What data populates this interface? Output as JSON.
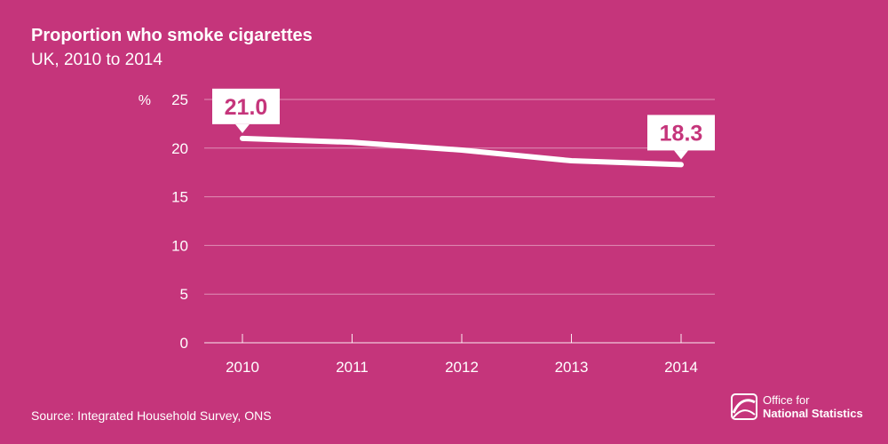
{
  "header": {
    "title": "Proportion who smoke cigarettes",
    "subtitle": "UK, 2010 to 2014"
  },
  "footer": {
    "source": "Source: Integrated Household Survey, ONS",
    "logo_line1": "Office for",
    "logo_line2": "National Statistics"
  },
  "colors": {
    "background": "#c5357b",
    "line": "#ffffff",
    "callout_text": "#c5357b"
  },
  "chart_data": {
    "type": "line",
    "title": "Proportion who smoke cigarettes",
    "subtitle": "UK, 2010 to 2014",
    "ylabel": "%",
    "xlabel": "",
    "categories": [
      "2010",
      "2011",
      "2012",
      "2013",
      "2014"
    ],
    "series": [
      {
        "values": [
          21.0,
          20.6,
          19.8,
          18.7,
          18.3
        ]
      }
    ],
    "annotations": [
      {
        "x": "2010",
        "text": "21.0"
      },
      {
        "x": "2014",
        "text": "18.3"
      }
    ],
    "ylim": [
      0,
      25
    ],
    "yticks": [
      0,
      5,
      10,
      15,
      20,
      25
    ],
    "grid": true
  }
}
